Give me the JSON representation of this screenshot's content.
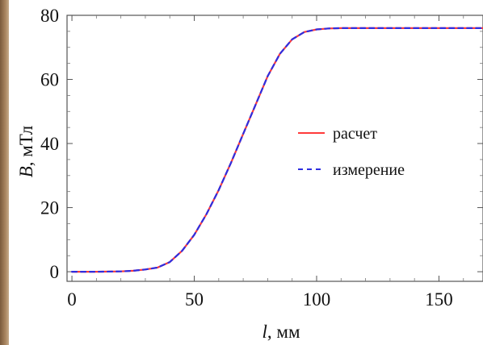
{
  "chart_data": {
    "type": "line",
    "xlabel": {
      "var": "l",
      "unit": ", мм"
    },
    "ylabel": {
      "var": "B",
      "unit": ", мТл"
    },
    "xlim": [
      -2,
      168
    ],
    "ylim": [
      -3,
      80
    ],
    "x_ticks": [
      0,
      50,
      100,
      150
    ],
    "y_ticks": [
      0,
      20,
      40,
      60,
      80
    ],
    "grid": false,
    "legend_position": "right",
    "series": [
      {
        "name": "расчет",
        "color": "#ff3b3b",
        "style": "solid",
        "x": [
          0,
          10,
          20,
          25,
          30,
          35,
          40,
          45,
          50,
          55,
          60,
          65,
          70,
          75,
          80,
          85,
          90,
          95,
          100,
          105,
          110,
          120,
          130,
          140,
          150,
          160,
          168
        ],
        "y": [
          0,
          0,
          0.1,
          0.3,
          0.7,
          1.3,
          3,
          6.5,
          11.5,
          18,
          25.5,
          34,
          43,
          52,
          61,
          68,
          72.5,
          74.8,
          75.6,
          75.9,
          76,
          76,
          76,
          76,
          76,
          76,
          76
        ]
      },
      {
        "name": "измерение",
        "color": "#2e2ee0",
        "style": "dashed",
        "x": [
          0,
          10,
          20,
          25,
          30,
          35,
          40,
          45,
          50,
          55,
          60,
          65,
          70,
          75,
          80,
          85,
          90,
          95,
          100,
          105,
          110,
          120,
          130,
          140,
          150,
          160,
          168
        ],
        "y": [
          0,
          0,
          0.1,
          0.3,
          0.7,
          1.3,
          3,
          6.5,
          11.5,
          18,
          25.5,
          34,
          43,
          52,
          61,
          68,
          72.5,
          74.8,
          75.6,
          75.9,
          76,
          76,
          76,
          76,
          76,
          76,
          76
        ]
      }
    ]
  }
}
